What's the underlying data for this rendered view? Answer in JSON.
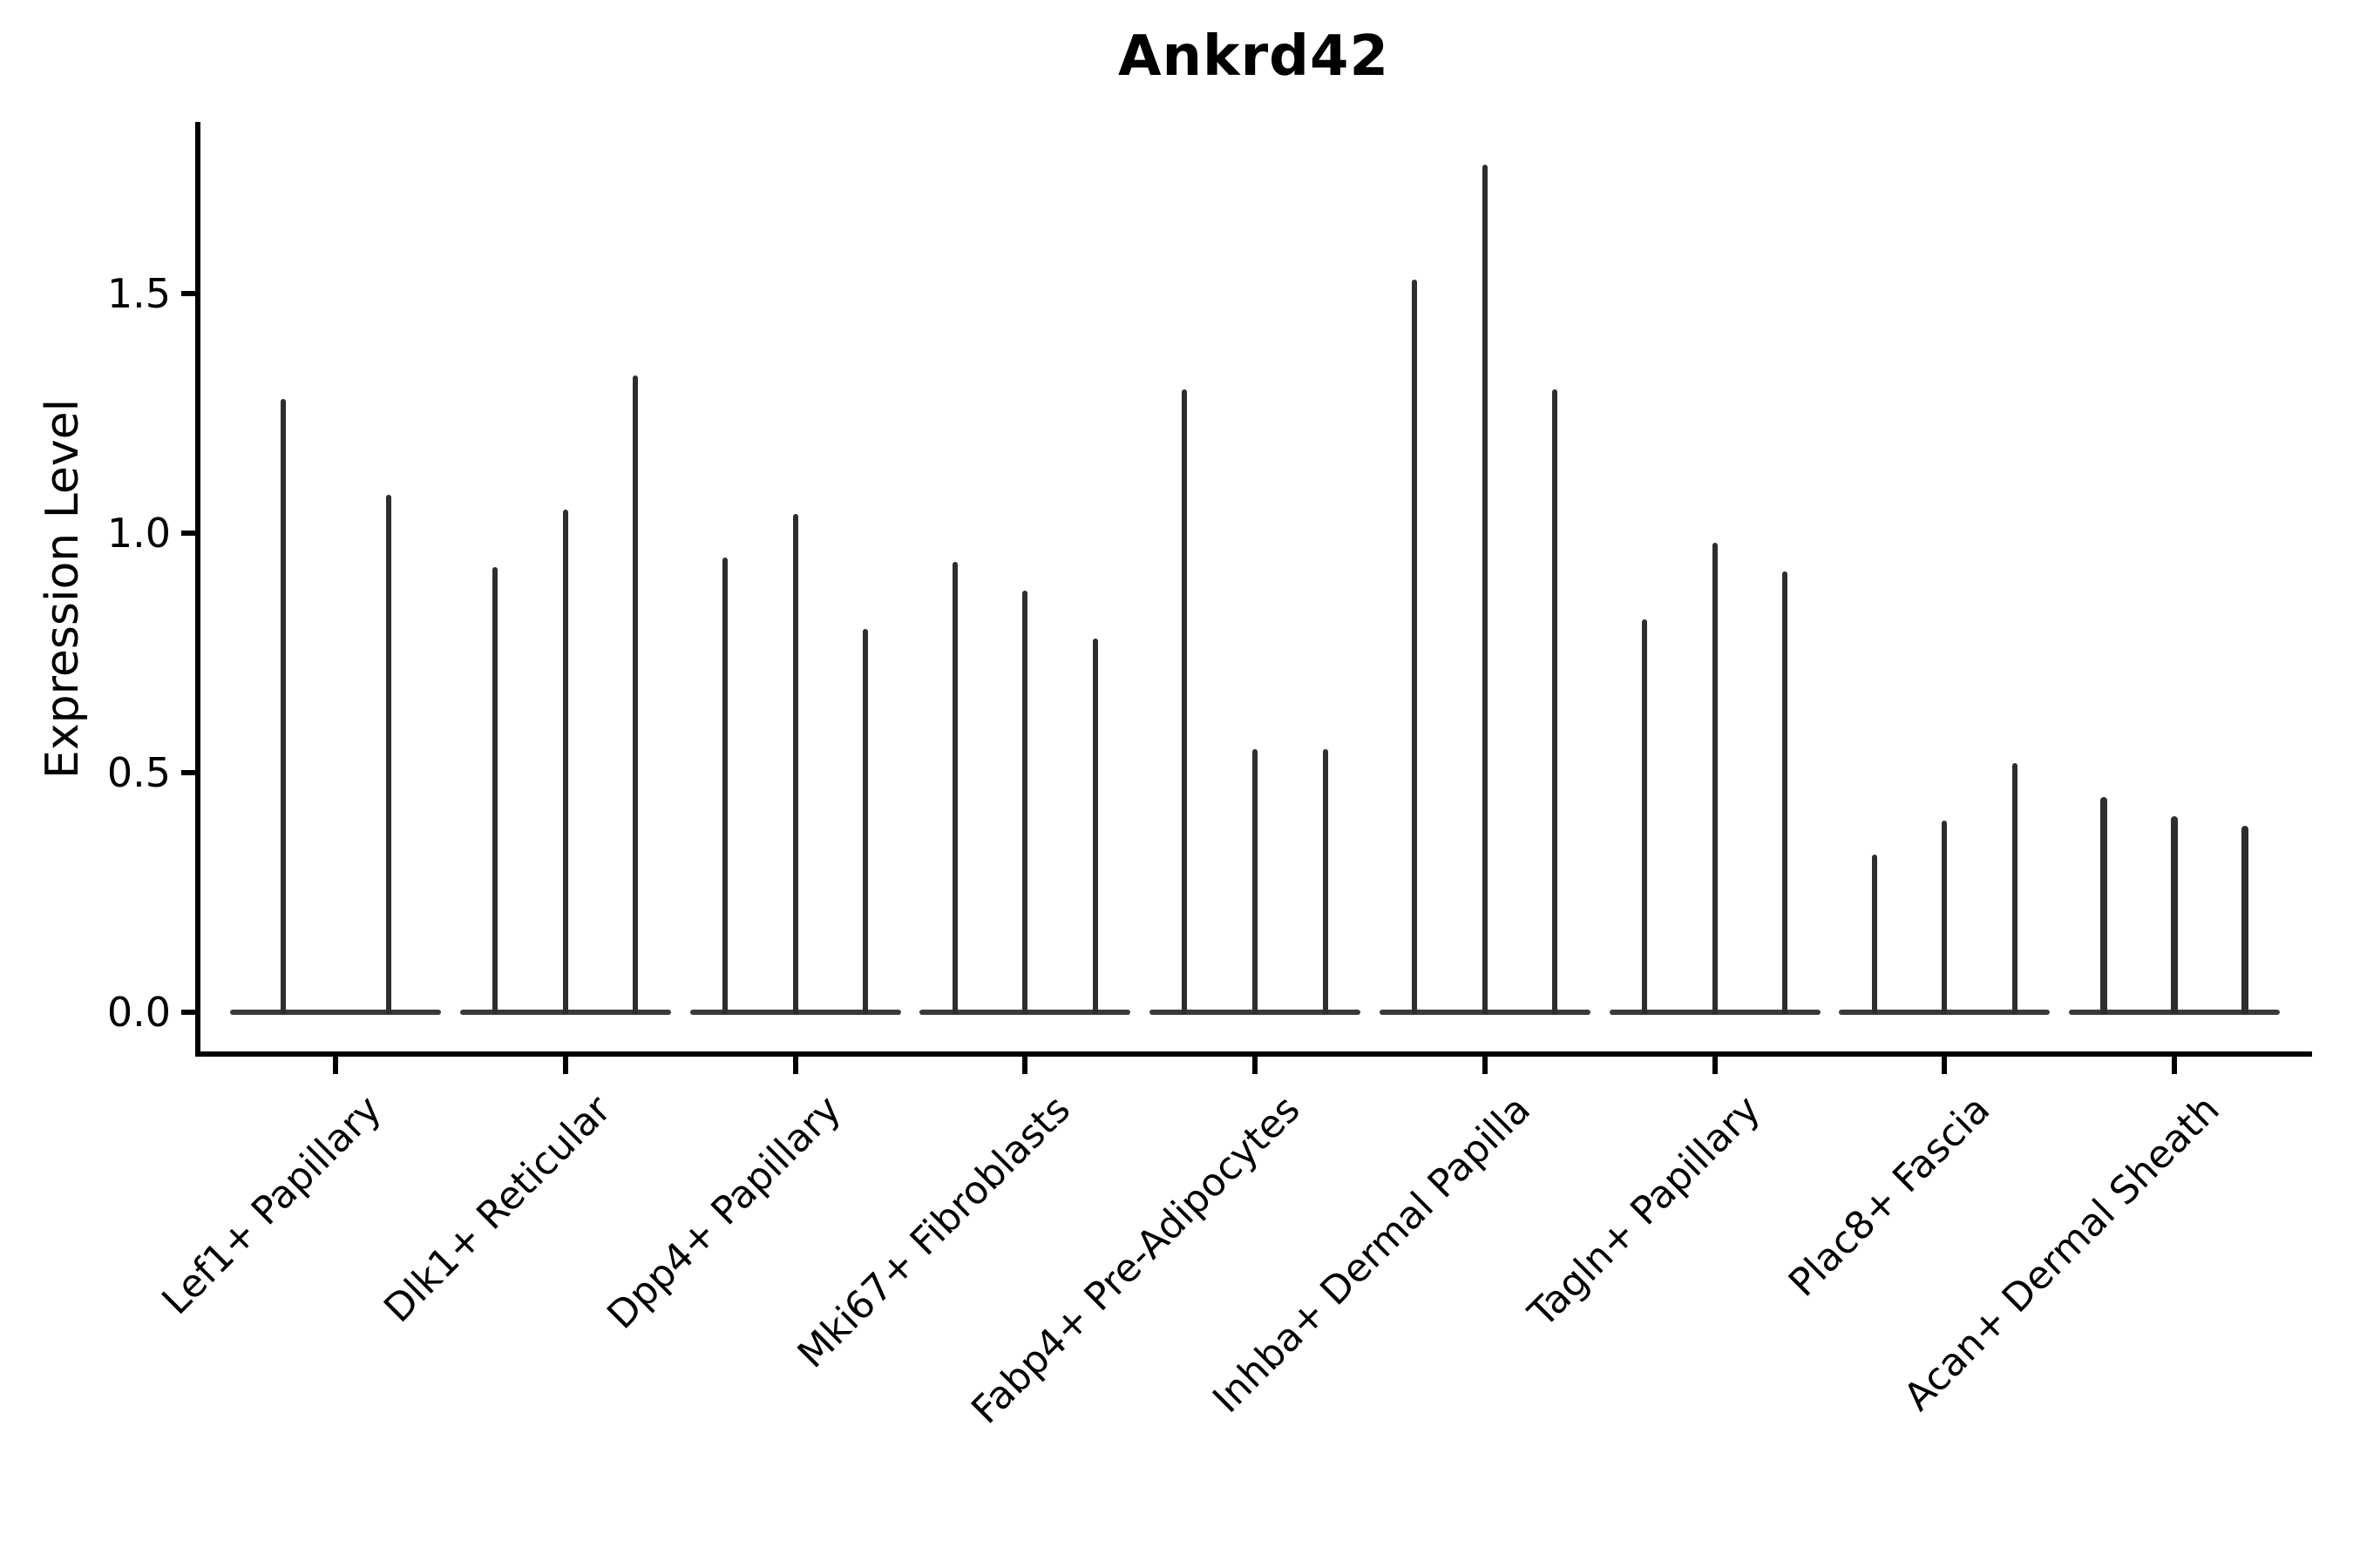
{
  "chart_data": {
    "type": "violin",
    "title": "Ankrd42",
    "ylabel": "Expression Level",
    "xlabel": "",
    "yticks": [
      "0.0",
      "0.5",
      "1.0",
      "1.5"
    ],
    "ytick_values": [
      0.0,
      0.5,
      1.0,
      1.5
    ],
    "ylim": [
      -0.09,
      1.86
    ],
    "grid": "off",
    "legend": "none",
    "categories": [
      "Lef1+ Papillary",
      "Dlk1+ Reticular",
      "Dpp4+ Papillary",
      "Mki67+ Fibroblasts",
      "Fabp4+ Pre-Adipocytes",
      "Inhba+ Dermal Papilla",
      "Tagln+ Papillary",
      "Plac8+ Fascia",
      "Acan+ Dermal Sheath"
    ],
    "groups": [
      {
        "category": "Lef1+ Papillary",
        "violin_max_values": [
          1.28,
          1.08
        ],
        "spike_width": 6
      },
      {
        "category": "Dlk1+ Reticular",
        "violin_max_values": [
          0.93,
          1.05,
          1.33
        ],
        "spike_width": 6
      },
      {
        "category": "Dpp4+ Papillary",
        "violin_max_values": [
          0.95,
          1.04,
          0.8
        ],
        "spike_width": 6
      },
      {
        "category": "Mki67+ Fibroblasts",
        "violin_max_values": [
          0.94,
          0.88,
          0.78
        ],
        "spike_width": 6
      },
      {
        "category": "Fabp4+ Pre-Adipocytes",
        "violin_max_values": [
          1.3,
          0.55,
          0.55
        ],
        "spike_width": 6
      },
      {
        "category": "Inhba+ Dermal Papilla",
        "violin_max_values": [
          1.53,
          1.77,
          1.3
        ],
        "spike_width": 6
      },
      {
        "category": "Tagln+ Papillary",
        "violin_max_values": [
          0.82,
          0.98,
          0.92
        ],
        "spike_width": 6
      },
      {
        "category": "Plac8+ Fascia",
        "violin_max_values": [
          0.33,
          0.4,
          0.52
        ],
        "spike_width": 6
      },
      {
        "category": "Acan+ Dermal Sheath",
        "violin_max_values": [
          0.45,
          0.41,
          0.39
        ],
        "spike_width": 8
      }
    ],
    "colors": {
      "violin": "#2e2e2e",
      "baseline": "#3a3a3a",
      "axis": "#000000",
      "background": "#ffffff"
    }
  }
}
